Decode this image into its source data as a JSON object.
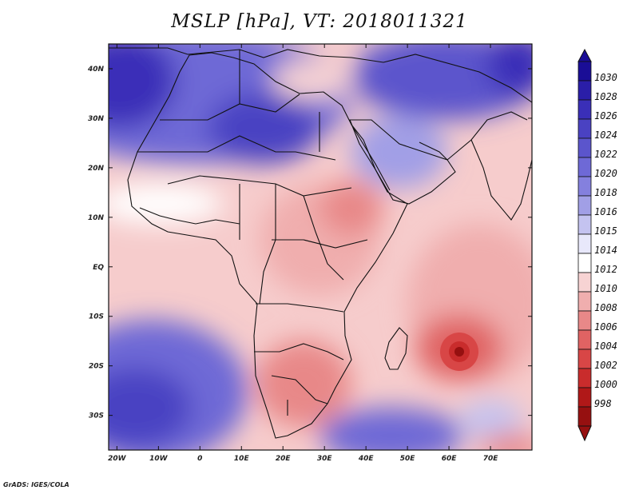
{
  "title": "MSLP [hPa], VT: 2018011321",
  "credit": "GrADS: IGES/COLA",
  "map": {
    "lon_range": [
      -22,
      80
    ],
    "lat_range": [
      -37,
      45
    ],
    "lat_ticks": [
      {
        "lat": 40,
        "label": "40N"
      },
      {
        "lat": 30,
        "label": "30N"
      },
      {
        "lat": 20,
        "label": "20N"
      },
      {
        "lat": 10,
        "label": "10N"
      },
      {
        "lat": 0,
        "label": "EQ"
      },
      {
        "lat": -10,
        "label": "10S"
      },
      {
        "lat": -20,
        "label": "20S"
      },
      {
        "lat": -30,
        "label": "30S"
      }
    ],
    "lon_ticks": [
      {
        "lon": -20,
        "label": "20W"
      },
      {
        "lon": -10,
        "label": "10W"
      },
      {
        "lon": 0,
        "label": "0"
      },
      {
        "lon": 10,
        "label": "10E"
      },
      {
        "lon": 20,
        "label": "20E"
      },
      {
        "lon": 30,
        "label": "30E"
      },
      {
        "lon": 40,
        "label": "40E"
      },
      {
        "lon": 50,
        "label": "50E"
      },
      {
        "lon": 60,
        "label": "60E"
      },
      {
        "lon": 70,
        "label": "70E"
      }
    ]
  },
  "colorbar": {
    "levels": [
      "1030",
      "1028",
      "1026",
      "1024",
      "1022",
      "1020",
      "1018",
      "1016",
      "1015",
      "1014",
      "1012",
      "1010",
      "1008",
      "1006",
      "1004",
      "1002",
      "1000",
      "998"
    ],
    "colors": [
      "#1a0d96",
      "#2a1ea8",
      "#3a2fb8",
      "#4a42c2",
      "#5b55cc",
      "#6e69d6",
      "#8480de",
      "#a19fe6",
      "#c4c3f0",
      "#e8e8fb",
      "#ffffff",
      "#f7d3d3",
      "#f0aeae",
      "#e88888",
      "#e06363",
      "#d84646",
      "#c92c2c",
      "#b01818",
      "#961010"
    ]
  }
}
